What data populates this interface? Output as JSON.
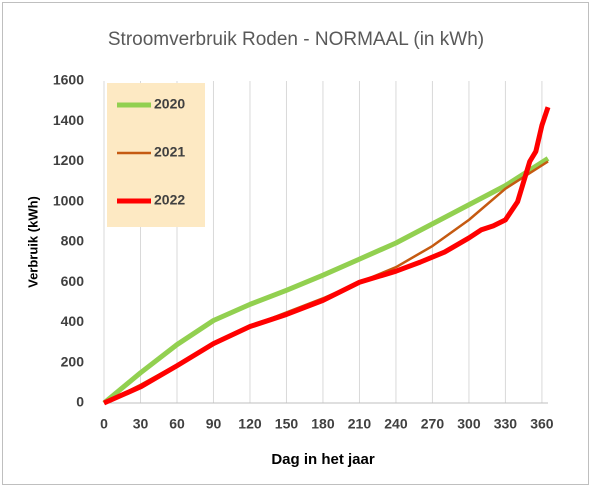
{
  "chart_data": {
    "type": "line",
    "title": "Stroomverbruik Roden - NORMAAL  (in kWh)",
    "x_label": "Dag in het jaar",
    "y_label": "Verbruik (kWh)",
    "xlim": [
      0,
      365
    ],
    "xticks": [
      0,
      30,
      60,
      90,
      120,
      150,
      180,
      210,
      240,
      270,
      300,
      330,
      360
    ],
    "ylim": [
      0,
      1600
    ],
    "yticks": [
      0,
      200,
      400,
      600,
      800,
      1000,
      1200,
      1400,
      1600
    ],
    "grid": "x",
    "legend": "top-left",
    "series": [
      {
        "name": "2020",
        "color": "#92d050",
        "width": 5,
        "x": [
          0,
          30,
          60,
          90,
          120,
          150,
          180,
          210,
          240,
          270,
          300,
          330,
          365
        ],
        "values": [
          0,
          150,
          290,
          410,
          490,
          560,
          635,
          715,
          795,
          890,
          985,
          1080,
          1215
        ]
      },
      {
        "name": "2021",
        "color": "#c55a11",
        "width": 2.5,
        "x": [
          0,
          30,
          60,
          90,
          120,
          150,
          180,
          210,
          240,
          270,
          300,
          330,
          365
        ],
        "values": [
          0,
          90,
          190,
          295,
          380,
          450,
          520,
          600,
          675,
          780,
          910,
          1065,
          1200
        ]
      },
      {
        "name": "2022",
        "color": "#ff0000",
        "width": 5,
        "x": [
          0,
          30,
          60,
          90,
          120,
          150,
          180,
          210,
          240,
          260,
          280,
          300,
          310,
          320,
          330,
          340,
          345,
          350,
          355,
          360,
          365
        ],
        "values": [
          0,
          80,
          185,
          295,
          380,
          440,
          510,
          600,
          655,
          700,
          750,
          820,
          860,
          880,
          910,
          1000,
          1100,
          1200,
          1250,
          1380,
          1470
        ]
      }
    ]
  }
}
